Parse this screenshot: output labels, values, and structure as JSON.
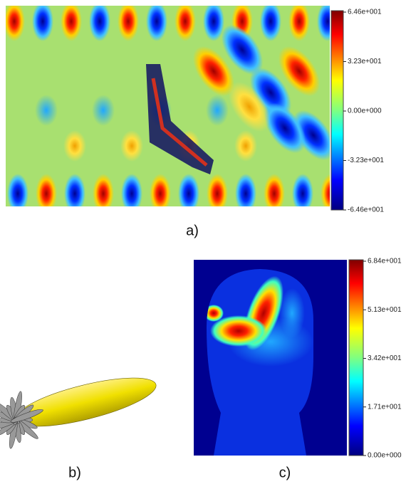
{
  "panels": [
    {
      "label": "a)",
      "colorbar": [
        "6.46e+001",
        "3.23e+001",
        "0.00e+000",
        "-3.23e+001",
        "-6.46e+001"
      ]
    },
    {
      "label": "b)"
    },
    {
      "label": "c)",
      "colorbar": [
        "6.84e+001",
        "5.13e+001",
        "3.42e+001",
        "1.71e+001",
        "0.00e+000"
      ]
    }
  ]
}
